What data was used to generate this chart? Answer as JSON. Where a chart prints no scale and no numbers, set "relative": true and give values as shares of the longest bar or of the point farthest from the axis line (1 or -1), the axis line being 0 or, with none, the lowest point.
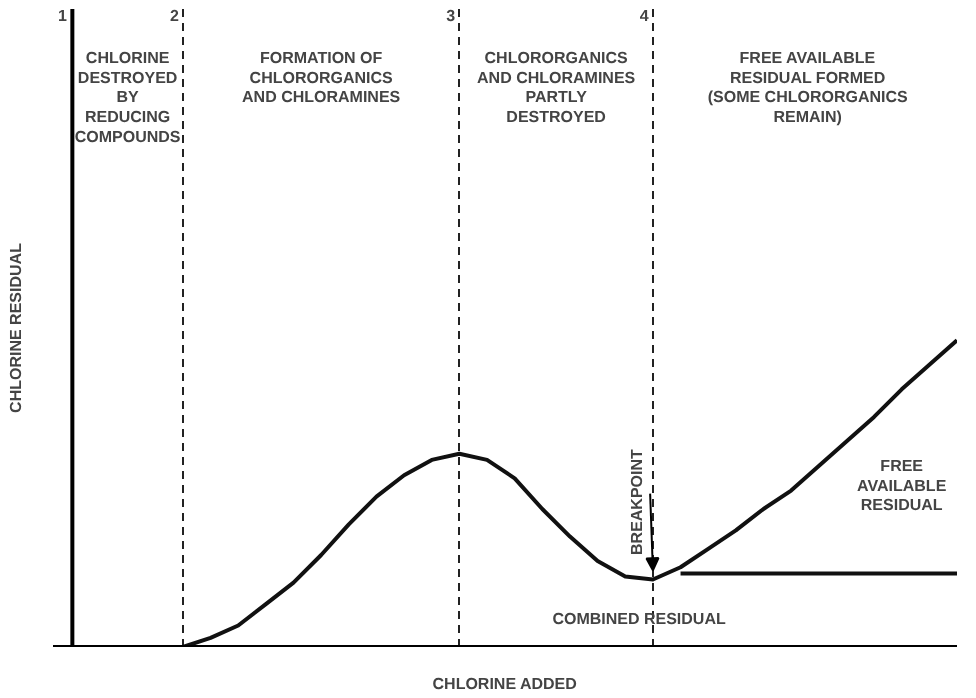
{
  "chart_data": {
    "type": "line",
    "relative": true,
    "xlabel": "CHLORINE ADDED",
    "ylabel": "CHLORINE RESIDUAL",
    "categories": [
      null,
      null,
      null,
      null,
      null,
      null,
      null,
      null,
      null,
      null,
      null,
      null,
      null,
      null,
      null,
      null,
      null,
      null,
      null,
      null,
      null,
      null,
      null,
      null,
      null,
      null,
      null,
      null,
      null,
      null,
      null,
      null,
      null
    ],
    "series": [
      {
        "color": "#111111",
        "values": [
          0,
          0,
          0,
          0,
          0,
          0.03,
          0.07,
          0.14,
          0.21,
          0.3,
          0.4,
          0.49,
          0.56,
          0.61,
          0.63,
          0.61,
          0.55,
          0.45,
          0.36,
          0.28,
          0.23,
          0.22,
          0.26,
          0.32,
          0.38,
          0.45,
          0.51,
          0.59,
          0.67,
          0.75,
          0.84,
          0.92,
          1.0
        ]
      },
      {
        "color": "#111111",
        "values": [
          null,
          null,
          null,
          null,
          null,
          null,
          null,
          null,
          null,
          null,
          null,
          null,
          null,
          null,
          null,
          null,
          null,
          null,
          null,
          null,
          null,
          null,
          0.24,
          0.24,
          0.24,
          0.24,
          0.24,
          0.24,
          0.24,
          0.24,
          0.24,
          0.24,
          0.24
        ]
      }
    ],
    "annotations": [
      "1",
      "2",
      "3",
      "4",
      "CHLORINE\nDESTROYED\nBY\nREDUCING\nCOMPOUNDS",
      "FORMATION OF\nCHLORORGANICS\nAND CHLORAMINES",
      "CHLORORGANICS\nAND CHLORAMINES\nPARTLY\nDESTROYED",
      "FREE AVAILABLE\nRESIDUAL FORMED\n(SOME CHLORORGANICS\nREMAIN)",
      "BREAKPOINT",
      "FREE\nAVAILABLE\nRESIDUAL",
      "COMBINED RESIDUAL"
    ],
    "grid": "x",
    "marker": "none",
    "line_style": "solid"
  }
}
